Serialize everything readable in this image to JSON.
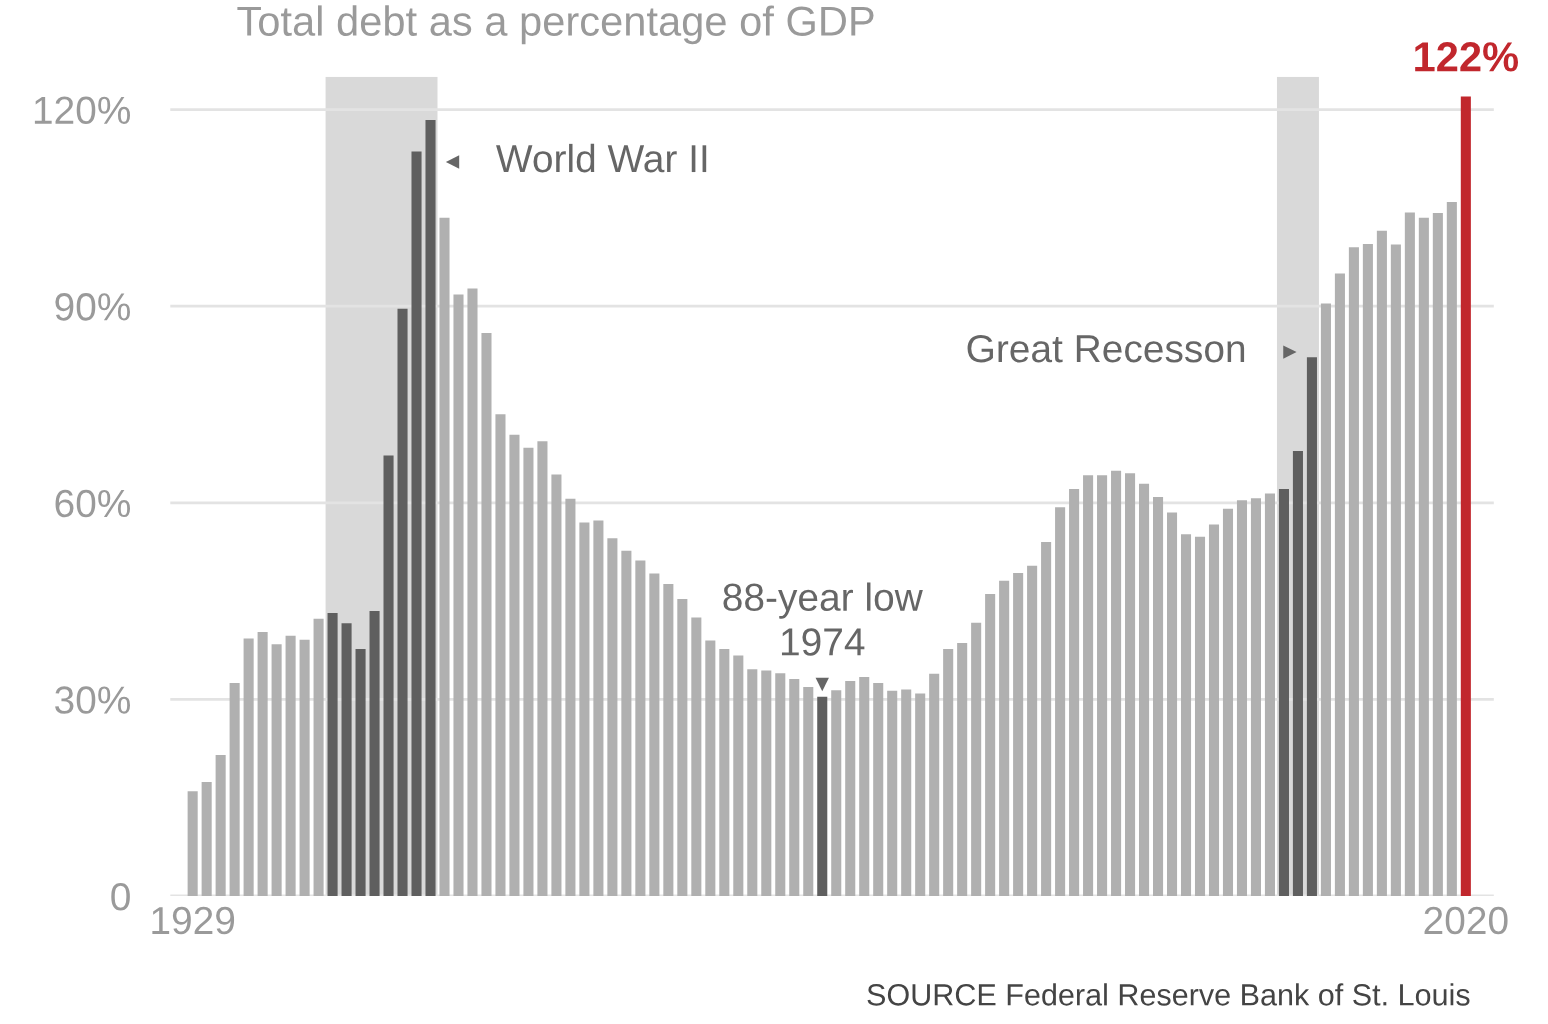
{
  "chart_data": {
    "type": "bar",
    "title": "Total debt as a percentage of GDP",
    "x": [
      1929,
      1930,
      1931,
      1932,
      1933,
      1934,
      1935,
      1936,
      1937,
      1938,
      1939,
      1940,
      1941,
      1942,
      1943,
      1944,
      1945,
      1946,
      1947,
      1948,
      1949,
      1950,
      1951,
      1952,
      1953,
      1954,
      1955,
      1956,
      1957,
      1958,
      1959,
      1960,
      1961,
      1962,
      1963,
      1964,
      1965,
      1966,
      1967,
      1968,
      1969,
      1970,
      1971,
      1972,
      1973,
      1974,
      1975,
      1976,
      1977,
      1978,
      1979,
      1980,
      1981,
      1982,
      1983,
      1984,
      1985,
      1986,
      1987,
      1988,
      1989,
      1990,
      1991,
      1992,
      1993,
      1994,
      1995,
      1996,
      1997,
      1998,
      1999,
      2000,
      2001,
      2002,
      2003,
      2004,
      2005,
      2006,
      2007,
      2008,
      2009,
      2010,
      2011,
      2012,
      2013,
      2014,
      2015,
      2016,
      2017,
      2018,
      2019,
      2020
    ],
    "values": [
      16,
      17.4,
      21.5,
      32.5,
      39.3,
      40.3,
      38.4,
      39.7,
      39.1,
      42.3,
      43.2,
      41.6,
      37.7,
      43.5,
      67.2,
      89.6,
      113.6,
      118.4,
      103.5,
      91.8,
      92.7,
      85.9,
      73.5,
      70.4,
      68.4,
      69.4,
      64.3,
      60.6,
      57,
      57.3,
      54.6,
      52.7,
      51.2,
      49.2,
      47.6,
      45.3,
      42.5,
      39,
      37.7,
      36.7,
      34.6,
      34.4,
      34,
      33.1,
      31.9,
      30.4,
      31.4,
      32.8,
      33.4,
      32.5,
      31.3,
      31.5,
      30.9,
      33.9,
      37.7,
      38.6,
      41.7,
      46.1,
      48.1,
      49.3,
      50.4,
      54,
      59.3,
      62.1,
      64.2,
      64.2,
      64.9,
      64.5,
      62.9,
      60.9,
      58.5,
      55.2,
      54.8,
      56.7,
      59.1,
      60.4,
      60.7,
      61.4,
      62.1,
      67.9,
      82.2,
      90.4,
      95,
      99,
      99.5,
      101.5,
      99.4,
      104.3,
      103.5,
      104.2,
      105.9,
      122
    ],
    "colors": [
      "#b0b0b0",
      "#b0b0b0",
      "#b0b0b0",
      "#b0b0b0",
      "#b0b0b0",
      "#b0b0b0",
      "#b0b0b0",
      "#b0b0b0",
      "#b0b0b0",
      "#b0b0b0",
      "#5f5f5f",
      "#5f5f5f",
      "#5f5f5f",
      "#5f5f5f",
      "#5f5f5f",
      "#5f5f5f",
      "#5f5f5f",
      "#5f5f5f",
      "#b0b0b0",
      "#b0b0b0",
      "#b0b0b0",
      "#b0b0b0",
      "#b0b0b0",
      "#b0b0b0",
      "#b0b0b0",
      "#b0b0b0",
      "#b0b0b0",
      "#b0b0b0",
      "#b0b0b0",
      "#b0b0b0",
      "#b0b0b0",
      "#b0b0b0",
      "#b0b0b0",
      "#b0b0b0",
      "#b0b0b0",
      "#b0b0b0",
      "#b0b0b0",
      "#b0b0b0",
      "#b0b0b0",
      "#b0b0b0",
      "#b0b0b0",
      "#b0b0b0",
      "#b0b0b0",
      "#b0b0b0",
      "#b0b0b0",
      "#5f5f5f",
      "#b0b0b0",
      "#b0b0b0",
      "#b0b0b0",
      "#b0b0b0",
      "#b0b0b0",
      "#b0b0b0",
      "#b0b0b0",
      "#b0b0b0",
      "#b0b0b0",
      "#b0b0b0",
      "#b0b0b0",
      "#b0b0b0",
      "#b0b0b0",
      "#b0b0b0",
      "#b0b0b0",
      "#b0b0b0",
      "#b0b0b0",
      "#b0b0b0",
      "#b0b0b0",
      "#b0b0b0",
      "#b0b0b0",
      "#b0b0b0",
      "#b0b0b0",
      "#b0b0b0",
      "#b0b0b0",
      "#b0b0b0",
      "#b0b0b0",
      "#b0b0b0",
      "#b0b0b0",
      "#b0b0b0",
      "#b0b0b0",
      "#b0b0b0",
      "#5f5f5f",
      "#5f5f5f",
      "#5f5f5f",
      "#b0b0b0",
      "#b0b0b0",
      "#b0b0b0",
      "#b0b0b0",
      "#b0b0b0",
      "#b0b0b0",
      "#b0b0b0",
      "#b0b0b0",
      "#b0b0b0",
      "#b0b0b0",
      "#c1272d"
    ],
    "value_labels": [
      null,
      null,
      null,
      null,
      null,
      null,
      null,
      null,
      null,
      null,
      null,
      null,
      null,
      null,
      null,
      null,
      null,
      null,
      null,
      null,
      null,
      null,
      null,
      null,
      null,
      null,
      null,
      null,
      null,
      null,
      null,
      null,
      null,
      null,
      null,
      null,
      null,
      null,
      null,
      null,
      null,
      null,
      null,
      null,
      null,
      null,
      null,
      null,
      null,
      null,
      null,
      null,
      null,
      null,
      null,
      null,
      null,
      null,
      null,
      null,
      null,
      null,
      null,
      null,
      null,
      null,
      null,
      null,
      null,
      null,
      null,
      null,
      null,
      null,
      null,
      null,
      null,
      null,
      null,
      null,
      null,
      null,
      null,
      null,
      null,
      null,
      null,
      null,
      null,
      null,
      null,
      "122%"
    ],
    "xlim": [
      1927.4,
      2022
    ],
    "xticks": [
      1929,
      2020
    ],
    "ylim": [
      0,
      125
    ],
    "yticks": [
      {
        "value": 0,
        "label": "0"
      },
      {
        "value": 30,
        "label": "30%"
      },
      {
        "value": 60,
        "label": "60%"
      },
      {
        "value": 90,
        "label": "90%"
      },
      {
        "value": 120,
        "label": "120%"
      }
    ],
    "bands": [
      {
        "axis": "x",
        "from": 1938.5,
        "to": 1946.5,
        "color": "#d9d9d9"
      },
      {
        "axis": "x",
        "from": 2006.5,
        "to": 2009.5,
        "color": "#d9d9d9"
      }
    ],
    "annotations": [
      {
        "text": "World War II",
        "x": 1946,
        "y": 112
      },
      {
        "text": "Great Recesson",
        "x": 2009,
        "y": 83
      },
      {
        "text": "88-year low\n1974",
        "x": 1974,
        "y": 30.4
      },
      "SOURCE Federal Reserve Bank of St. Louis"
    ],
    "grid": "y"
  }
}
